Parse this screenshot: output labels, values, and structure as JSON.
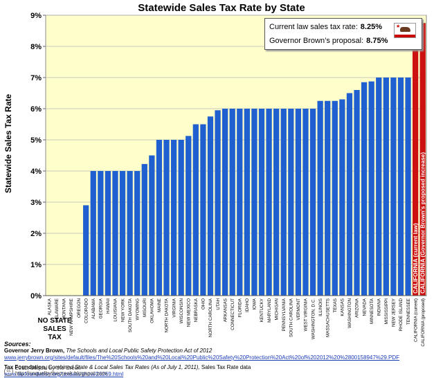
{
  "chart_data": {
    "type": "bar",
    "title": "Statewide Sales Tax Rate by State",
    "ylabel": "Statewide Sales Tax Rate",
    "ylim": [
      0,
      9
    ],
    "yticks": [
      "0%",
      "1%",
      "2%",
      "3%",
      "4%",
      "5%",
      "6%",
      "7%",
      "8%",
      "9%"
    ],
    "grid": true,
    "categories": [
      "ALASKA",
      "DELAWARE",
      "MONTANA",
      "NEW HAMPSHIRE",
      "OREGON",
      "COLORADO",
      "ALABAMA",
      "GEORGIA",
      "HAWAII",
      "LOUISIANA",
      "NEW YORK",
      "SOUTH DAKOTA",
      "WYOMING",
      "MISOURI",
      "OKLAHOMA",
      "MAINE",
      "NORTH DAKOTA",
      "VIRGINIA",
      "WISCONSIN",
      "NEW MEXICO",
      "NEBRASKA",
      "OHIO",
      "NORTH CAROLINA",
      "UTAH",
      "ARKANSAS",
      "CONNECTICUT",
      "FLORIDA",
      "IDAHO",
      "IOWA",
      "KENTUCKY",
      "MARYLAND",
      "MICHIGAN",
      "PENNSYLVANIA",
      "SOUTH CAROLINA",
      "VERMONT",
      "WEST VIRGINIA",
      "WASHINGTON, D.C.",
      "ILLINOIS",
      "MASSACHUSETTS",
      "TEXAS",
      "KANSAS",
      "WASHINGTON",
      "ARIZONA",
      "NEVADA",
      "MINNESOTA",
      "INDIANA",
      "MISSISSIPPI",
      "NEW JERSEY",
      "RHODE ISLAND",
      "TENNESSEE",
      "CALIFORNIA (current)",
      "CALIFORNIA (proposed)"
    ],
    "values": [
      0,
      0,
      0,
      0,
      0,
      2.9,
      4,
      4,
      4,
      4,
      4,
      4,
      4,
      4.225,
      4.5,
      5,
      5,
      5,
      5,
      5.125,
      5.5,
      5.5,
      5.75,
      5.95,
      6,
      6,
      6,
      6,
      6,
      6,
      6,
      6,
      6,
      6,
      6,
      6,
      6,
      6.25,
      6.25,
      6.25,
      6.3,
      6.5,
      6.6,
      6.85,
      6.875,
      7,
      7,
      7,
      7,
      7,
      8.25,
      8.75
    ],
    "bar_colors": {
      "default": "#1f5fcf",
      "highlight": "#cc1111"
    },
    "highlight_labels": [
      "CALIFORNIA (current law)",
      "CALIFORNIA (Governor Brown's proposed increase)"
    ],
    "no_tax_label": [
      "NO STATE",
      "SALES TAX"
    ]
  },
  "legend": {
    "current_label": "Current law sales tax rate:",
    "current_value": "8.25%",
    "proposal_label": "Governor Brown’s proposal:",
    "proposal_value": "8.75%",
    "flag_icon": "california-flag-icon"
  },
  "sources": {
    "heading": "Sources:",
    "s1_author": "Governor Jerry Brown,",
    "s1_title": "The Schools and Local Public Safety Protection Act of 2012",
    "s1_url": "www.jerrybrown.org/sites/default/files/The%20Schools%20and%20Local%20Public%20Safety%20Protection%20Act%20of%202012%20%2800158947%29.PDF",
    "s2_author": "Tax Foundation,",
    "s2_title": "Combined State & Local Sales Tax Rates (As of July 1, 2011),",
    "s2_note": "Sales Tax Rate data",
    "s2_url": "www.taxfoundation.org/taxdata/show/26269.html"
  },
  "footer": {
    "cc_icon": "cc",
    "line1": "2011, Soquel by the Creek",
    "line2": "http://soquelbythecreek.blogspot.com"
  }
}
